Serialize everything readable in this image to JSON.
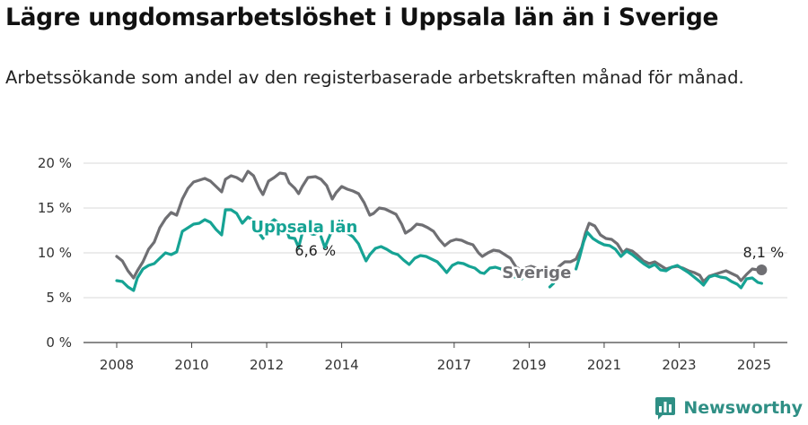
{
  "header": {
    "title": "Lägre ungdomsarbetslöshet i Uppsala län än i Sverige",
    "subtitle": "Arbetssökande som andel av den registerbaserade arbetskraften månad för månad."
  },
  "brand": {
    "name": "Newsworthy",
    "icon": "newsworthy-logo-icon",
    "color": "#2f8f85"
  },
  "chart_data": {
    "type": "line",
    "y_ticks": [
      "0 %",
      "5 %",
      "10 %",
      "15 %",
      "20 %"
    ],
    "y_values": [
      0,
      5,
      10,
      15,
      20
    ],
    "x_ticks": [
      "2008",
      "2010",
      "2012",
      "2014",
      "2017",
      "2019",
      "2021",
      "2023",
      "2025"
    ],
    "x_tick_values": [
      2008,
      2010,
      2012,
      2014,
      2017,
      2019,
      2021,
      2023,
      2025
    ],
    "xlim": [
      2007.6,
      2026.0
    ],
    "ylim": [
      0,
      20
    ],
    "grid": true,
    "series": [
      {
        "name": "Sverige",
        "color": "#6f6f73",
        "end_label": "8,1 %",
        "points": [
          [
            2008.0,
            9.6
          ],
          [
            2008.15,
            9.1
          ],
          [
            2008.3,
            8.0
          ],
          [
            2008.45,
            7.2
          ],
          [
            2008.55,
            8.0
          ],
          [
            2008.7,
            9.0
          ],
          [
            2008.85,
            10.4
          ],
          [
            2009.0,
            11.2
          ],
          [
            2009.15,
            12.8
          ],
          [
            2009.3,
            13.8
          ],
          [
            2009.45,
            14.5
          ],
          [
            2009.6,
            14.2
          ],
          [
            2009.75,
            16.0
          ],
          [
            2009.9,
            17.2
          ],
          [
            2010.05,
            17.9
          ],
          [
            2010.2,
            18.1
          ],
          [
            2010.35,
            18.3
          ],
          [
            2010.5,
            18.0
          ],
          [
            2010.65,
            17.4
          ],
          [
            2010.8,
            16.8
          ],
          [
            2010.9,
            18.2
          ],
          [
            2011.05,
            18.6
          ],
          [
            2011.2,
            18.4
          ],
          [
            2011.35,
            18.0
          ],
          [
            2011.5,
            19.1
          ],
          [
            2011.65,
            18.6
          ],
          [
            2011.8,
            17.2
          ],
          [
            2011.9,
            16.5
          ],
          [
            2012.05,
            18.0
          ],
          [
            2012.2,
            18.4
          ],
          [
            2012.35,
            18.9
          ],
          [
            2012.5,
            18.8
          ],
          [
            2012.6,
            17.8
          ],
          [
            2012.75,
            17.2
          ],
          [
            2012.85,
            16.6
          ],
          [
            2012.95,
            17.4
          ],
          [
            2013.1,
            18.4
          ],
          [
            2013.3,
            18.5
          ],
          [
            2013.45,
            18.2
          ],
          [
            2013.6,
            17.5
          ],
          [
            2013.75,
            16.0
          ],
          [
            2013.85,
            16.7
          ],
          [
            2014.0,
            17.4
          ],
          [
            2014.15,
            17.1
          ],
          [
            2014.3,
            16.9
          ],
          [
            2014.45,
            16.6
          ],
          [
            2014.6,
            15.6
          ],
          [
            2014.75,
            14.2
          ],
          [
            2014.85,
            14.4
          ],
          [
            2015.0,
            15.0
          ],
          [
            2015.15,
            14.9
          ],
          [
            2015.3,
            14.6
          ],
          [
            2015.45,
            14.3
          ],
          [
            2015.6,
            13.2
          ],
          [
            2015.7,
            12.2
          ],
          [
            2015.85,
            12.6
          ],
          [
            2016.0,
            13.2
          ],
          [
            2016.15,
            13.1
          ],
          [
            2016.3,
            12.8
          ],
          [
            2016.45,
            12.4
          ],
          [
            2016.6,
            11.5
          ],
          [
            2016.75,
            10.8
          ],
          [
            2016.9,
            11.3
          ],
          [
            2017.05,
            11.5
          ],
          [
            2017.2,
            11.4
          ],
          [
            2017.35,
            11.1
          ],
          [
            2017.5,
            10.9
          ],
          [
            2017.65,
            10.0
          ],
          [
            2017.75,
            9.6
          ],
          [
            2017.9,
            10.0
          ],
          [
            2018.05,
            10.3
          ],
          [
            2018.2,
            10.2
          ],
          [
            2018.35,
            9.8
          ],
          [
            2018.5,
            9.4
          ],
          [
            2018.65,
            8.4
          ],
          [
            2018.75,
            8.2
          ],
          [
            2018.9,
            8.3
          ],
          [
            2019.05,
            8.5
          ],
          [
            2019.2,
            8.3
          ],
          [
            2019.35,
            8.0
          ],
          [
            2019.5,
            7.9
          ],
          [
            2019.65,
            7.6
          ],
          [
            2019.8,
            8.5
          ],
          [
            2019.95,
            9.0
          ],
          [
            2020.1,
            9.0
          ],
          [
            2020.25,
            9.3
          ],
          [
            2020.4,
            10.6
          ],
          [
            2020.5,
            12.2
          ],
          [
            2020.6,
            13.3
          ],
          [
            2020.75,
            13.0
          ],
          [
            2020.9,
            12.0
          ],
          [
            2021.05,
            11.6
          ],
          [
            2021.2,
            11.5
          ],
          [
            2021.35,
            11.0
          ],
          [
            2021.5,
            10.0
          ],
          [
            2021.6,
            10.4
          ],
          [
            2021.75,
            10.2
          ],
          [
            2021.9,
            9.7
          ],
          [
            2022.05,
            9.1
          ],
          [
            2022.2,
            8.8
          ],
          [
            2022.35,
            9.0
          ],
          [
            2022.5,
            8.6
          ],
          [
            2022.65,
            8.2
          ],
          [
            2022.8,
            8.4
          ],
          [
            2022.95,
            8.5
          ],
          [
            2023.1,
            8.3
          ],
          [
            2023.25,
            8.0
          ],
          [
            2023.4,
            7.8
          ],
          [
            2023.55,
            7.5
          ],
          [
            2023.65,
            6.8
          ],
          [
            2023.8,
            7.4
          ],
          [
            2023.95,
            7.6
          ],
          [
            2024.1,
            7.8
          ],
          [
            2024.25,
            8.0
          ],
          [
            2024.4,
            7.7
          ],
          [
            2024.55,
            7.4
          ],
          [
            2024.65,
            6.9
          ],
          [
            2024.8,
            7.6
          ],
          [
            2024.95,
            8.2
          ],
          [
            2025.1,
            8.1
          ],
          [
            2025.2,
            8.1
          ]
        ]
      },
      {
        "name": "Uppsala län",
        "color": "#16a394",
        "end_label": "6,6 %",
        "points": [
          [
            2008.0,
            6.9
          ],
          [
            2008.15,
            6.8
          ],
          [
            2008.3,
            6.2
          ],
          [
            2008.45,
            5.8
          ],
          [
            2008.55,
            7.2
          ],
          [
            2008.7,
            8.2
          ],
          [
            2008.85,
            8.6
          ],
          [
            2009.0,
            8.8
          ],
          [
            2009.15,
            9.4
          ],
          [
            2009.3,
            10.0
          ],
          [
            2009.45,
            9.8
          ],
          [
            2009.6,
            10.1
          ],
          [
            2009.75,
            12.4
          ],
          [
            2009.9,
            12.8
          ],
          [
            2010.05,
            13.2
          ],
          [
            2010.2,
            13.3
          ],
          [
            2010.35,
            13.7
          ],
          [
            2010.5,
            13.4
          ],
          [
            2010.65,
            12.6
          ],
          [
            2010.8,
            12.0
          ],
          [
            2010.9,
            14.8
          ],
          [
            2011.05,
            14.8
          ],
          [
            2011.2,
            14.4
          ],
          [
            2011.35,
            13.3
          ],
          [
            2011.5,
            14.0
          ],
          [
            2011.65,
            13.6
          ],
          [
            2011.8,
            12.2
          ],
          [
            2011.9,
            11.6
          ],
          [
            2012.05,
            13.2
          ],
          [
            2012.2,
            13.7
          ],
          [
            2012.35,
            13.2
          ],
          [
            2012.5,
            13.0
          ],
          [
            2012.6,
            11.7
          ],
          [
            2012.75,
            11.6
          ],
          [
            2012.85,
            10.6
          ],
          [
            2012.95,
            12.2
          ],
          [
            2013.1,
            12.6
          ],
          [
            2013.25,
            12.5
          ]
        ]
      },
      {
        "name": "Uppsala län",
        "color": "#16a394",
        "points": [
          [
            2013.45,
            11.8
          ],
          [
            2013.55,
            10.6
          ],
          [
            2013.7,
            12.1
          ],
          [
            2013.85,
            12.5
          ],
          [
            2014.0,
            12.6
          ],
          [
            2014.15,
            12.2
          ],
          [
            2014.3,
            11.8
          ],
          [
            2014.45,
            11.0
          ],
          [
            2014.55,
            10.0
          ],
          [
            2014.65,
            9.1
          ],
          [
            2014.75,
            9.8
          ],
          [
            2014.9,
            10.5
          ],
          [
            2015.05,
            10.7
          ],
          [
            2015.2,
            10.4
          ],
          [
            2015.35,
            10.0
          ],
          [
            2015.5,
            9.8
          ],
          [
            2015.65,
            9.2
          ],
          [
            2015.8,
            8.7
          ],
          [
            2015.95,
            9.4
          ],
          [
            2016.1,
            9.7
          ],
          [
            2016.25,
            9.6
          ],
          [
            2016.4,
            9.3
          ],
          [
            2016.55,
            9.0
          ],
          [
            2016.7,
            8.3
          ],
          [
            2016.8,
            7.8
          ],
          [
            2016.95,
            8.6
          ],
          [
            2017.1,
            8.9
          ],
          [
            2017.25,
            8.8
          ],
          [
            2017.4,
            8.5
          ],
          [
            2017.55,
            8.3
          ],
          [
            2017.7,
            7.8
          ],
          [
            2017.8,
            7.7
          ],
          [
            2017.95,
            8.3
          ],
          [
            2018.1,
            8.4
          ],
          [
            2018.25,
            8.2
          ],
          [
            2018.4,
            7.7
          ],
          [
            2018.55,
            7.4
          ],
          [
            2018.7,
            7.2
          ],
          [
            2018.8,
            7.1
          ]
        ]
      },
      {
        "name": "Uppsala län",
        "color": "#16a394",
        "points": [
          [
            2019.55,
            6.2
          ],
          [
            2019.65,
            6.6
          ]
        ]
      },
      {
        "name": "Uppsala län",
        "color": "#16a394",
        "points": [
          [
            2020.25,
            8.2
          ],
          [
            2020.35,
            9.6
          ],
          [
            2020.45,
            11.2
          ],
          [
            2020.55,
            12.3
          ],
          [
            2020.7,
            11.6
          ],
          [
            2020.85,
            11.2
          ],
          [
            2021.0,
            10.9
          ],
          [
            2021.15,
            10.8
          ],
          [
            2021.3,
            10.4
          ],
          [
            2021.45,
            9.6
          ],
          [
            2021.6,
            10.2
          ],
          [
            2021.75,
            9.8
          ],
          [
            2021.9,
            9.3
          ],
          [
            2022.05,
            8.8
          ],
          [
            2022.2,
            8.4
          ],
          [
            2022.35,
            8.7
          ],
          [
            2022.5,
            8.1
          ],
          [
            2022.65,
            8.0
          ],
          [
            2022.8,
            8.4
          ],
          [
            2022.95,
            8.6
          ],
          [
            2023.1,
            8.2
          ],
          [
            2023.25,
            7.8
          ],
          [
            2023.4,
            7.3
          ],
          [
            2023.55,
            6.8
          ],
          [
            2023.65,
            6.4
          ],
          [
            2023.8,
            7.3
          ],
          [
            2023.95,
            7.5
          ],
          [
            2024.1,
            7.3
          ],
          [
            2024.25,
            7.2
          ],
          [
            2024.4,
            6.8
          ],
          [
            2024.55,
            6.5
          ],
          [
            2024.65,
            6.1
          ],
          [
            2024.8,
            7.1
          ],
          [
            2024.95,
            7.2
          ],
          [
            2025.1,
            6.7
          ],
          [
            2025.2,
            6.6
          ]
        ]
      }
    ],
    "series_labels": [
      {
        "text": "Uppsala län",
        "x": 2013.0,
        "y": 12.9,
        "color": "#16a394"
      },
      {
        "text": "Sverige",
        "x": 2019.2,
        "y": 7.8,
        "color": "#6f6f73"
      }
    ]
  }
}
